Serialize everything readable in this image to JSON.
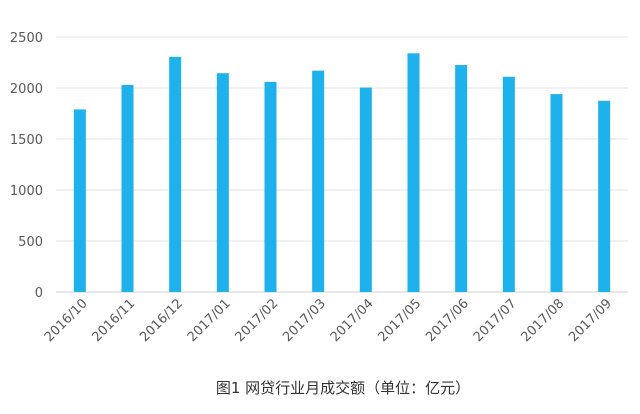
{
  "chart_data": {
    "type": "bar",
    "title": "",
    "xlabel": "",
    "ylabel": "",
    "categories": [
      "2016/10",
      "2016/11",
      "2016/12",
      "2017/01",
      "2017/02",
      "2017/03",
      "2017/04",
      "2017/05",
      "2017/06",
      "2017/07",
      "2017/08",
      "2017/09"
    ],
    "values": [
      1790,
      2030,
      2305,
      2145,
      2060,
      2170,
      2005,
      2340,
      2225,
      2110,
      1940,
      1875
    ],
    "ylim": [
      0,
      2500
    ],
    "yticks": [
      0,
      500,
      1000,
      1500,
      2000,
      2500
    ],
    "grid": true,
    "legend": "none",
    "bar_color": "#1EB1EC",
    "caption": "图1  网贷行业月成交额（单位：亿元）"
  }
}
